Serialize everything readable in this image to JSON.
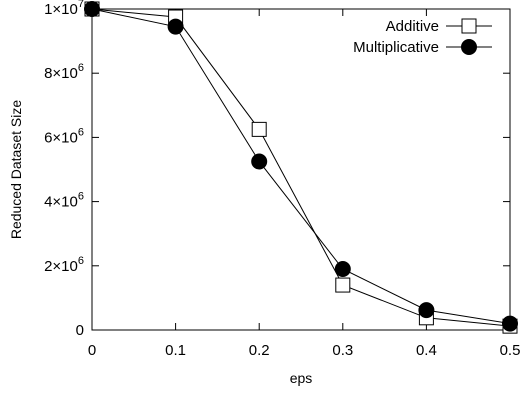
{
  "chart_data": {
    "type": "line",
    "xlabel": "eps",
    "ylabel": "Reduced Dataset Size",
    "xlim": [
      0,
      0.5
    ],
    "ylim": [
      0,
      10000000
    ],
    "x_ticks": [
      {
        "value": 0,
        "label": "0"
      },
      {
        "value": 0.1,
        "label": "0.1"
      },
      {
        "value": 0.2,
        "label": "0.2"
      },
      {
        "value": 0.3,
        "label": "0.3"
      },
      {
        "value": 0.4,
        "label": "0.4"
      },
      {
        "value": 0.5,
        "label": "0.5"
      }
    ],
    "y_ticks": [
      {
        "value": 0,
        "mant": "0",
        "exp": ""
      },
      {
        "value": 2000000,
        "mant": "2×10",
        "exp": "6"
      },
      {
        "value": 4000000,
        "mant": "4×10",
        "exp": "6"
      },
      {
        "value": 6000000,
        "mant": "6×10",
        "exp": "6"
      },
      {
        "value": 8000000,
        "mant": "8×10",
        "exp": "6"
      },
      {
        "value": 10000000,
        "mant": "1×10",
        "exp": "7"
      }
    ],
    "grid": false,
    "legend_position": "top-right",
    "series": [
      {
        "name": "Additive",
        "marker": "open-square",
        "x": [
          0,
          0.1,
          0.2,
          0.3,
          0.4,
          0.5
        ],
        "y": [
          10000000,
          9750000,
          6250000,
          1400000,
          380000,
          120000
        ]
      },
      {
        "name": "Multiplicative",
        "marker": "filled-circle",
        "x": [
          0,
          0.1,
          0.2,
          0.3,
          0.4,
          0.5
        ],
        "y": [
          10000000,
          9450000,
          5250000,
          1900000,
          620000,
          200000
        ]
      }
    ]
  }
}
